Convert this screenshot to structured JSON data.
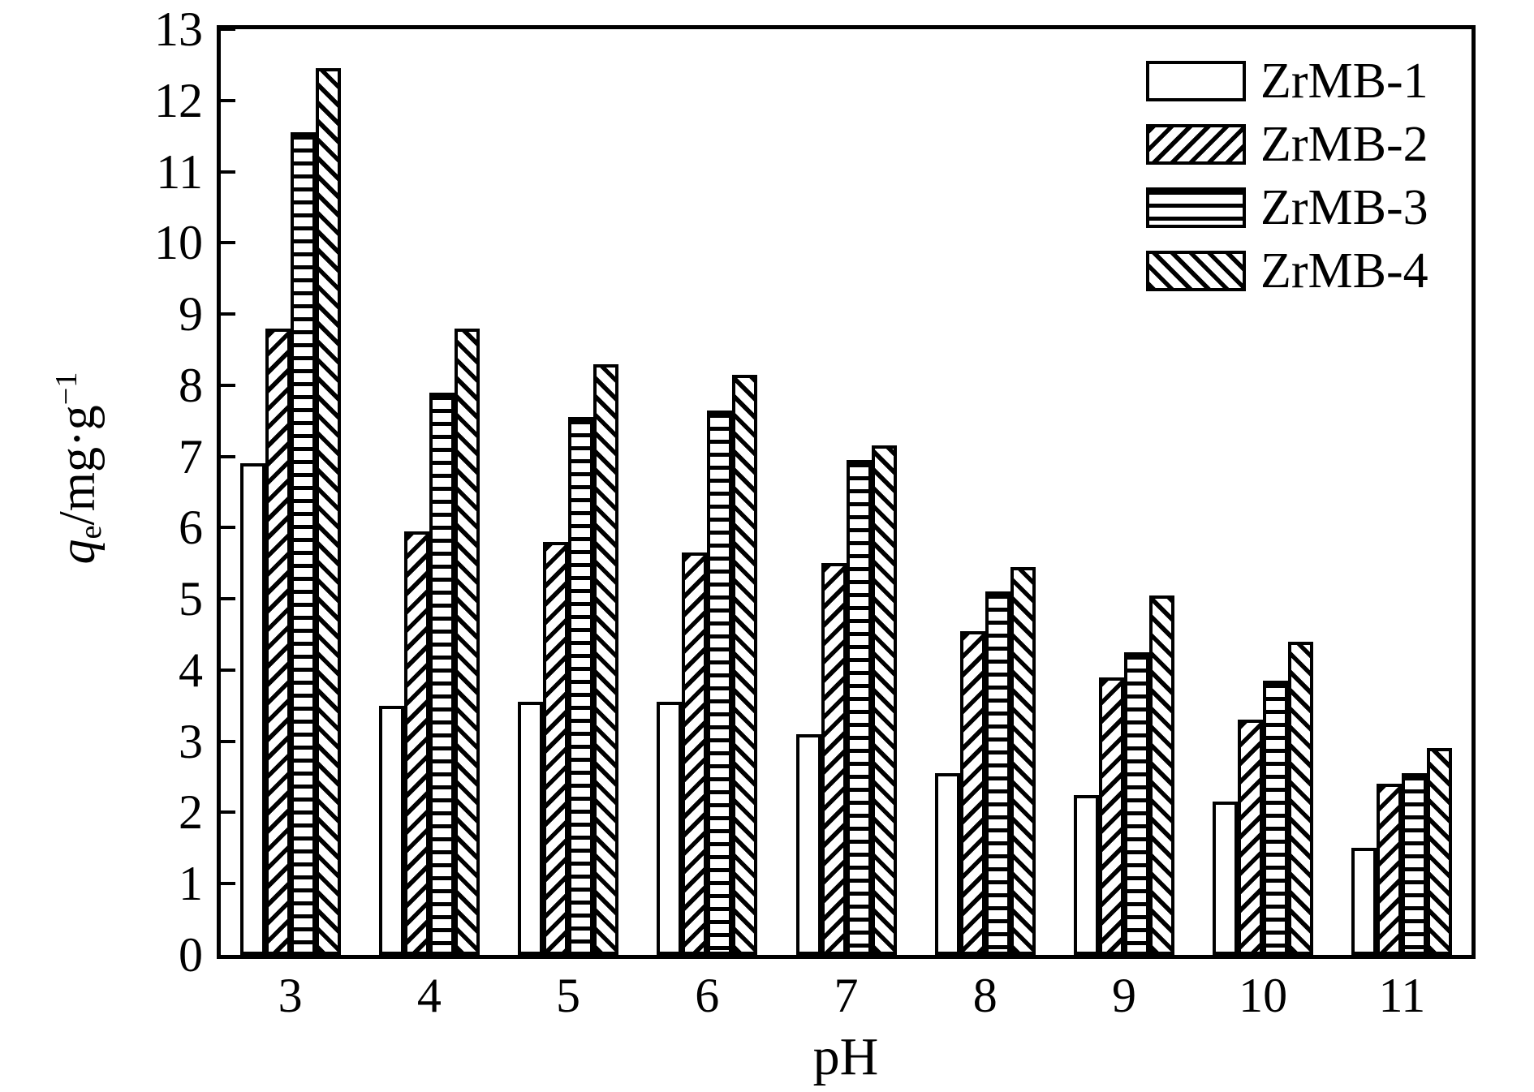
{
  "chart_data": {
    "type": "bar",
    "title": "",
    "xlabel": "pH",
    "ylabel": "qe/mg·g−1",
    "ylabel_parts": {
      "variable": "q",
      "subscript": "e",
      "unit": "/mg·g",
      "exponent": "−1"
    },
    "categories": [
      "3",
      "4",
      "5",
      "6",
      "7",
      "8",
      "9",
      "10",
      "11"
    ],
    "y_ticks": [
      0,
      1,
      2,
      3,
      4,
      5,
      6,
      7,
      8,
      9,
      10,
      11,
      12,
      13
    ],
    "ylim": [
      0,
      13
    ],
    "grid": false,
    "legend_position": "top-right-inside",
    "series": [
      {
        "name": "ZrMB-1",
        "hatch": "none",
        "values": [
          6.9,
          3.5,
          3.55,
          3.55,
          3.1,
          2.55,
          2.25,
          2.15,
          1.5
        ]
      },
      {
        "name": "ZrMB-2",
        "hatch": "diagonal-up",
        "values": [
          8.8,
          5.95,
          5.8,
          5.65,
          5.5,
          4.55,
          3.9,
          3.3,
          2.4
        ]
      },
      {
        "name": "ZrMB-3",
        "hatch": "horizontal",
        "values": [
          11.55,
          7.9,
          7.55,
          7.65,
          6.95,
          5.1,
          4.25,
          3.85,
          2.55
        ]
      },
      {
        "name": "ZrMB-4",
        "hatch": "diagonal-down",
        "values": [
          12.45,
          8.8,
          8.3,
          8.15,
          7.15,
          5.45,
          5.05,
          4.4,
          2.9
        ]
      }
    ],
    "colors": {
      "bar_fill": "#ffffff",
      "stroke": "#000000",
      "background": "#ffffff",
      "text": "#000000"
    }
  }
}
